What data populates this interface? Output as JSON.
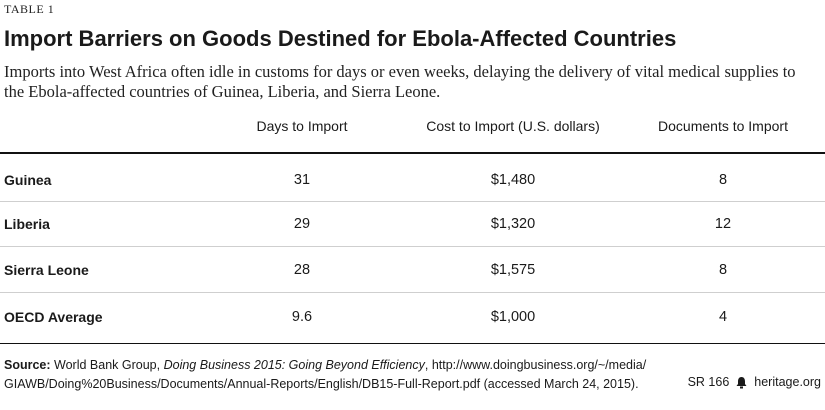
{
  "table_label": "TABLE 1",
  "title": "Import Barriers on Goods Destined for Ebola-Affected Countries",
  "subtitle": "Imports into West Africa often idle in customs for days or even weeks, delaying the delivery of vital medical supplies to the Ebola-affected countries of Guinea, Liberia, and Sierra Leone.",
  "columns": [
    "Days to Import",
    "Cost to Import (U.S. dollars)",
    "Documents to Import"
  ],
  "rows": [
    {
      "label": "Guinea",
      "days": "31",
      "cost": "$1,480",
      "docs": "8"
    },
    {
      "label": "Liberia",
      "days": "29",
      "cost": "$1,320",
      "docs": "12"
    },
    {
      "label": "Sierra Leone",
      "days": "28",
      "cost": "$1,575",
      "docs": "8"
    },
    {
      "label": "OECD Average",
      "days": "9.6",
      "cost": "$1,000",
      "docs": "4"
    }
  ],
  "source": {
    "label": "Source:",
    "publisher": "World Bank Group,",
    "title": "Doing Business 2015: Going Beyond Efficiency",
    "url_line1": ", http://www.doingbusiness.org/~/media/",
    "url_line2": "GIAWB/Doing%20Business/Documents/Annual-Reports/English/DB15-Full-Report.pdf (accessed March 24, 2015)."
  },
  "footer": {
    "report_id": "SR 166",
    "site": "heritage.org",
    "icon": "bell-icon"
  }
}
